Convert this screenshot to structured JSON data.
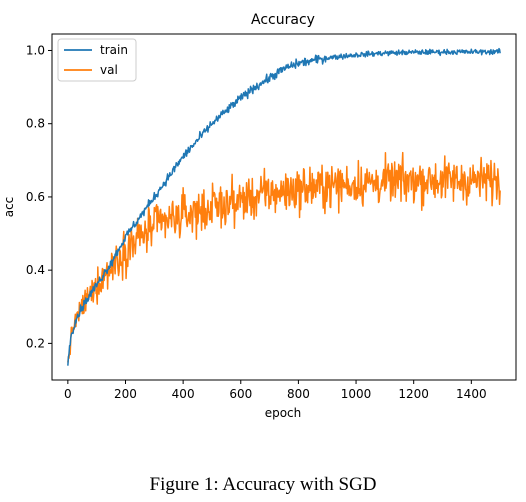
{
  "chart_data": {
    "type": "line",
    "title": "Accuracy",
    "xlabel": "epoch",
    "ylabel": "acc",
    "xlim": [
      -55,
      1555
    ],
    "ylim": [
      0.1,
      1.045
    ],
    "xticks": [
      0,
      200,
      400,
      600,
      800,
      1000,
      1200,
      1400
    ],
    "yticks": [
      0.2,
      0.4,
      0.6,
      0.8,
      1.0
    ],
    "xtick_labels": [
      "0",
      "200",
      "400",
      "600",
      "800",
      "1000",
      "1200",
      "1400"
    ],
    "ytick_labels": [
      "0.2",
      "0.4",
      "0.6",
      "0.8",
      "1.0"
    ],
    "legend_position": "upper-left",
    "grid": false,
    "series": [
      {
        "name": "train",
        "color": "#1f77b4",
        "noise": 0.006,
        "x": [
          0,
          10,
          25,
          50,
          100,
          150,
          200,
          300,
          400,
          500,
          600,
          650,
          700,
          750,
          800,
          900,
          1000,
          1100,
          1200,
          1300,
          1400,
          1500
        ],
        "values": [
          0.14,
          0.22,
          0.26,
          0.3,
          0.36,
          0.42,
          0.49,
          0.6,
          0.71,
          0.8,
          0.87,
          0.9,
          0.925,
          0.95,
          0.965,
          0.98,
          0.988,
          0.993,
          0.995,
          0.996,
          0.996,
          0.997
        ]
      },
      {
        "name": "val",
        "color": "#ff7f0e",
        "noise": 0.03,
        "x": [
          0,
          10,
          25,
          50,
          100,
          150,
          200,
          300,
          400,
          500,
          600,
          700,
          800,
          900,
          1000,
          1100,
          1200,
          1300,
          1400,
          1500
        ],
        "values": [
          0.14,
          0.21,
          0.26,
          0.3,
          0.36,
          0.41,
          0.46,
          0.52,
          0.55,
          0.57,
          0.59,
          0.61,
          0.62,
          0.63,
          0.635,
          0.64,
          0.645,
          0.645,
          0.645,
          0.645
        ]
      }
    ]
  },
  "caption": "Figure 1: Accuracy with SGD"
}
